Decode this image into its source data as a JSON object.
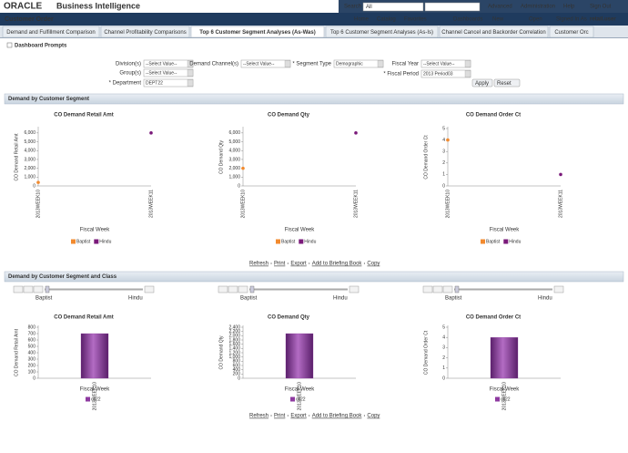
{
  "header": {
    "logo": "ORACLE",
    "app": "Business Intelligence",
    "search_label": "Search",
    "search_scope": "All",
    "links": [
      "Advanced",
      "Administration",
      "Help",
      "Sign Out"
    ]
  },
  "nav": {
    "title": "Customer Order",
    "links": [
      "Home",
      "Catalog",
      "Favorites",
      "Dashboards",
      "New",
      "Open"
    ],
    "signed_in_label": "Signed In As",
    "user": "retail.user"
  },
  "tabs": {
    "items": [
      "Demand and Fulfillment Comparison",
      "Channel Profitability Comparisons",
      "Top 6 Customer Segment Analyses (As-Was)",
      "Top 6 Customer Segment Analyses (As-Is)",
      "Channel Cancel and Backorder Correlation",
      "Customer Orc"
    ],
    "active": 2
  },
  "prompts": {
    "title": "Dashboard Prompts",
    "fields": [
      {
        "label": "Division(s)",
        "value": "--Select Value--"
      },
      {
        "label": "Demand Channel(s)",
        "value": "--Select Value--"
      },
      {
        "label": "* Segment Type",
        "value": "Demographic"
      },
      {
        "label": "Fiscal Year",
        "value": "--Select Value--"
      },
      {
        "label": "Group(s)",
        "value": "--Select Value--"
      },
      {
        "label": "* Fiscal Period",
        "value": "2013 Period03"
      },
      {
        "label": "* Department",
        "value": "DEPT22"
      }
    ],
    "buttons": [
      "Apply",
      "Reset"
    ]
  },
  "sections": [
    {
      "title": "Demand by Customer Segment",
      "links": [
        "Refresh",
        "Print",
        "Export",
        "Add to Briefing Book",
        "Copy"
      ]
    },
    {
      "title": "Demand by Customer Segment and Class",
      "links": [
        "Refresh",
        "Print",
        "Export",
        "Add to Briefing Book",
        "Copy"
      ]
    }
  ],
  "slider": {
    "start": "Baptist",
    "end": "Hindu"
  },
  "chart_data": [
    {
      "type": "line",
      "title": "CO Demand Retail Amt",
      "x_label": "Fiscal Week",
      "y_label": "CO Demand Retail Amt",
      "categories": [
        "2013WEEK10",
        "2013WEEK11"
      ],
      "series": [
        {
          "name": "Baptist",
          "color": "#f28a2e",
          "values": [
            400,
            null
          ]
        },
        {
          "name": "Hindu",
          "color": "#7a1a7a",
          "values": [
            null,
            6000
          ]
        }
      ],
      "ylim": [
        0,
        6500
      ],
      "yticks": [
        0,
        {
          "value": 1000,
          "label": "1,000"
        },
        {
          "value": 2000,
          "label": "2,000"
        },
        {
          "value": 3000,
          "label": "3,000"
        },
        {
          "value": 4000,
          "label": "4,000"
        },
        {
          "value": 5000,
          "label": "5,000"
        },
        {
          "value": 6000,
          "label": "6,000"
        }
      ]
    },
    {
      "type": "line",
      "title": "CO Demand Qty",
      "x_label": "Fiscal Week",
      "y_label": "CO Demand Qty",
      "categories": [
        "2013WEEK10",
        "2013WEEK11"
      ],
      "series": [
        {
          "name": "Baptist",
          "color": "#f28a2e",
          "values": [
            2000,
            null
          ]
        },
        {
          "name": "Hindu",
          "color": "#7a1a7a",
          "values": [
            null,
            6000
          ]
        }
      ],
      "ylim": [
        0,
        6500
      ],
      "yticks": [
        0,
        {
          "value": 1000,
          "label": "1,000"
        },
        {
          "value": 2000,
          "label": "2,000"
        },
        {
          "value": 3000,
          "label": "3,000"
        },
        {
          "value": 4000,
          "label": "4,000"
        },
        {
          "value": 5000,
          "label": "5,000"
        },
        {
          "value": 6000,
          "label": "6,000"
        }
      ]
    },
    {
      "type": "line",
      "title": "CO Demand Order Ct",
      "x_label": "Fiscal Week",
      "y_label": "CO Demand Order Ct",
      "categories": [
        "2013WEEK10",
        "2013WEEK11"
      ],
      "series": [
        {
          "name": "Baptist",
          "color": "#f28a2e",
          "values": [
            4,
            null
          ]
        },
        {
          "name": "Hindu",
          "color": "#7a1a7a",
          "values": [
            null,
            1
          ]
        }
      ],
      "ylim": [
        0,
        5
      ],
      "yticks": [
        0,
        1,
        2,
        3,
        4,
        5
      ]
    },
    {
      "type": "bar",
      "title": "CO Demand Retail Amt",
      "x_label": "Fiscal Week",
      "y_label": "CO Demand Retail Amt",
      "categories": [
        "2013WEEK10"
      ],
      "series": [
        {
          "name": "cc22",
          "color": "#8e3aa0",
          "values": [
            700
          ]
        }
      ],
      "ylim": [
        0,
        800
      ],
      "yticks": [
        0,
        100,
        200,
        300,
        400,
        500,
        600,
        700,
        800
      ]
    },
    {
      "type": "bar",
      "title": "CO Demand Qty",
      "x_label": "Fiscal Week",
      "y_label": "CO Demand Qty",
      "categories": [
        "2013WEEK10"
      ],
      "series": [
        {
          "name": "cc22",
          "color": "#8e3aa0",
          "values": [
            2100
          ]
        }
      ],
      "ylim": [
        0,
        2400
      ],
      "yticks": [
        0,
        200,
        400,
        600,
        800,
        {
          "value": 1000,
          "label": "1,000"
        },
        {
          "value": 1200,
          "label": "1,200"
        },
        {
          "value": 1400,
          "label": "1,400"
        },
        {
          "value": 1600,
          "label": "1,600"
        },
        {
          "value": 1800,
          "label": "1,800"
        },
        {
          "value": 2000,
          "label": "2,000"
        },
        {
          "value": 2200,
          "label": "2,200"
        },
        {
          "value": 2400,
          "label": "2,400"
        }
      ]
    },
    {
      "type": "bar",
      "title": "CO Demand Order Ct",
      "x_label": "Fiscal Week",
      "y_label": "CO Demand Order Ct",
      "categories": [
        "2013WEEK10"
      ],
      "series": [
        {
          "name": "cc22",
          "color": "#8e3aa0",
          "values": [
            4
          ]
        }
      ],
      "ylim": [
        0,
        5
      ],
      "yticks": [
        0,
        1,
        2,
        3,
        4,
        5
      ]
    }
  ]
}
